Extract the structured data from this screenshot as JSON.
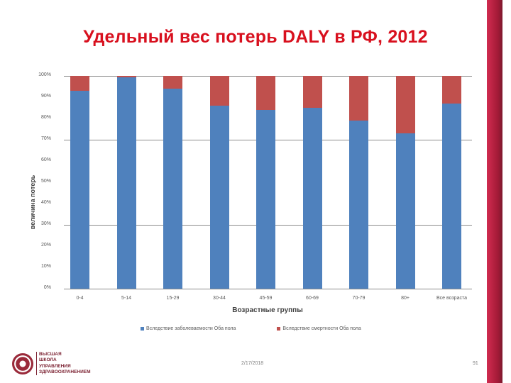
{
  "slide": {
    "title": "Удельный вес потерь DALY в РФ, 2012",
    "date": "2/17/2018",
    "page_number": "91",
    "logo_lines": [
      "ВЫСШАЯ",
      "ШКОЛА",
      "УПРАВЛЕНИЯ",
      "ЗДРАВООХРАНЕНИЕМ"
    ],
    "accent_color": "#d8101e",
    "band_color": "#a31a37"
  },
  "chart_data": {
    "type": "bar",
    "stacked": "percent",
    "title": "Удельный вес потерь DALY в РФ, 2012",
    "xlabel": "Возрастные группы",
    "ylabel": "величина потерь",
    "categories": [
      "0-4",
      "5-14",
      "15-29",
      "30-44",
      "45-59",
      "60-69",
      "70-79",
      "80+",
      "Все возраста"
    ],
    "series": [
      {
        "name": "Вследствие заболеваемости Оба пола",
        "color": "#4f81bd",
        "values": [
          93,
          99.5,
          94,
          86,
          84,
          85,
          79,
          73,
          87
        ]
      },
      {
        "name": "Вследствие смертности Оба пола",
        "color": "#c0504d",
        "values": [
          7,
          0.5,
          6,
          14,
          16,
          15,
          21,
          27,
          13
        ]
      }
    ],
    "yticks": [
      "0%",
      "10%",
      "20%",
      "30%",
      "40%",
      "50%",
      "60%",
      "70%",
      "80%",
      "90%",
      "100%"
    ],
    "ylim": [
      0,
      100
    ],
    "grid": "horizontal major",
    "legend_position": "bottom"
  }
}
